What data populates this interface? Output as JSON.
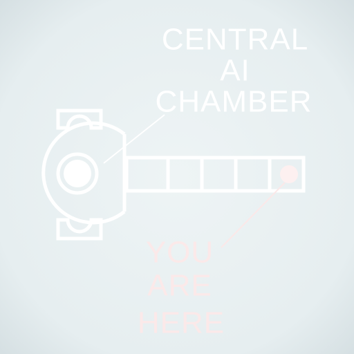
{
  "chamber_label": [
    "CENTRAL",
    "AI",
    "CHAMBER"
  ],
  "location_label": [
    "YOU",
    "ARE",
    "HERE"
  ]
}
